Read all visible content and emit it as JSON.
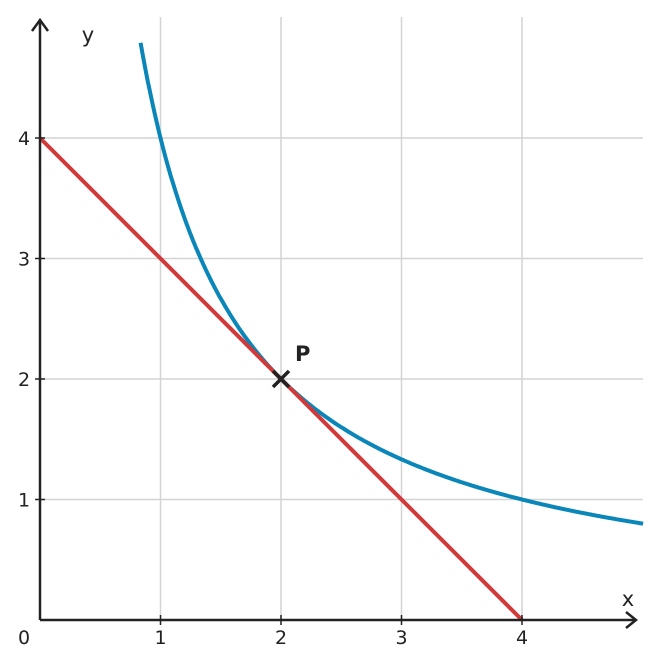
{
  "chart_data": {
    "type": "line",
    "title": "",
    "xlabel": "x",
    "ylabel": "y",
    "origin_label": "0",
    "xlim": [
      0,
      5
    ],
    "ylim": [
      0,
      5
    ],
    "x_ticks": [
      1,
      2,
      3,
      4
    ],
    "y_ticks": [
      1,
      2,
      3,
      4
    ],
    "grid": true,
    "series": [
      {
        "function": "y = 4/x",
        "color": "#0a86b8",
        "x": [
          0.84,
          1,
          1.5,
          2,
          2.5,
          3,
          3.5,
          4,
          4.5,
          5
        ],
        "y": [
          4.76,
          4,
          2.67,
          2,
          1.6,
          1.33,
          1.14,
          1,
          0.89,
          0.8
        ]
      },
      {
        "function": "y = 4 - x",
        "color": "#d13a3a",
        "x": [
          0,
          4
        ],
        "y": [
          4,
          0
        ]
      }
    ],
    "points": [
      {
        "label": "P",
        "x": 2,
        "y": 2,
        "marker": "x",
        "color": "#222222"
      }
    ]
  }
}
